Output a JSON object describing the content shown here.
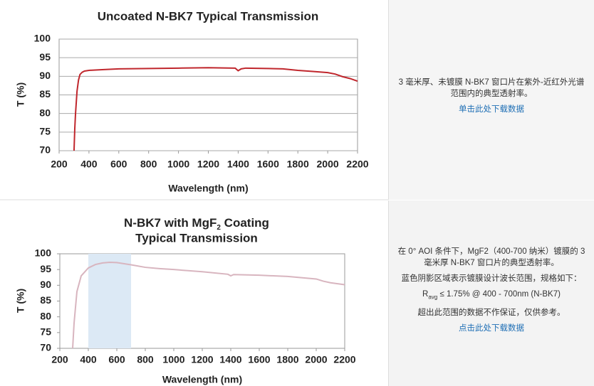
{
  "chart_data": [
    {
      "type": "line",
      "title": "Uncoated N-BK7 Typical Transmission",
      "x_label": "Wavelength (nm)",
      "y_label": "T (%)",
      "x": [
        300,
        305,
        310,
        320,
        330,
        340,
        355,
        370,
        400,
        500,
        600,
        800,
        1000,
        1200,
        1380,
        1400,
        1420,
        1450,
        1600,
        1700,
        1800,
        1900,
        2000,
        2050,
        2100,
        2150,
        2200
      ],
      "values": [
        70,
        76,
        80,
        86,
        89,
        90.5,
        91.1,
        91.4,
        91.6,
        91.8,
        92,
        92.1,
        92.2,
        92.3,
        92.2,
        91.5,
        92,
        92.2,
        92.1,
        92,
        91.6,
        91.3,
        91,
        90.6,
        89.9,
        89.4,
        88.7
      ],
      "color": "#c0272d",
      "grid": true,
      "xlim": [
        200,
        2200
      ],
      "xticks": [
        200,
        400,
        600,
        800,
        1000,
        1200,
        1400,
        1600,
        1800,
        2000,
        2200
      ],
      "ylim": [
        70,
        100
      ],
      "yticks": [
        70,
        75,
        80,
        85,
        90,
        95,
        100
      ]
    },
    {
      "type": "line",
      "title": {
        "text": "N-BK7 with MgF",
        "subscript": "2",
        "suffix": " Coating",
        "line2": "Typical Transmission"
      },
      "x_label": "Wavelength (nm)",
      "y_label": "T (%)",
      "x": [
        290,
        300,
        320,
        350,
        400,
        450,
        500,
        550,
        600,
        700,
        800,
        900,
        1000,
        1200,
        1380,
        1400,
        1420,
        1600,
        1800,
        2000,
        2050,
        2100,
        2200
      ],
      "values": [
        70,
        78,
        88,
        93,
        95.5,
        96.6,
        97.1,
        97.3,
        97.2,
        96.5,
        95.7,
        95.3,
        95,
        94.3,
        93.5,
        93,
        93.4,
        93.2,
        92.8,
        92,
        91.3,
        90.8,
        90.2
      ],
      "color": "#d8b5bf",
      "grid": false,
      "highlight": [
        400,
        700
      ],
      "highlight_color": "#dce9f5",
      "xlim": [
        200,
        2200
      ],
      "xticks": [
        200,
        400,
        600,
        800,
        1000,
        1200,
        1400,
        1600,
        1800,
        2000,
        2200
      ],
      "ylim": [
        70,
        100
      ],
      "yticks": [
        70,
        75,
        80,
        85,
        90,
        95,
        100
      ]
    }
  ],
  "panels": [
    {
      "description": "3 毫米厚、未镀膜 N-BK7 窗口片在紫外-近红外光谱范围内的典型透射率。",
      "link": "单击此处下载数据"
    },
    {
      "description": "在 0° AOI 条件下，MgF2（400-700 纳米）镀膜的 3 毫米厚 N-BK7 窗口片的典型透射率。",
      "note": "蓝色阴影区域表示镀膜设计波长范围，规格如下：",
      "spec": {
        "symbol": "R",
        "subscript": "avg",
        "text": " ≤ 1.75% @ 400 - 700nm (N-BK7)"
      },
      "disclaimer": "超出此范围的数据不作保证，仅供参考。",
      "link": "点击此处下载数据"
    }
  ]
}
